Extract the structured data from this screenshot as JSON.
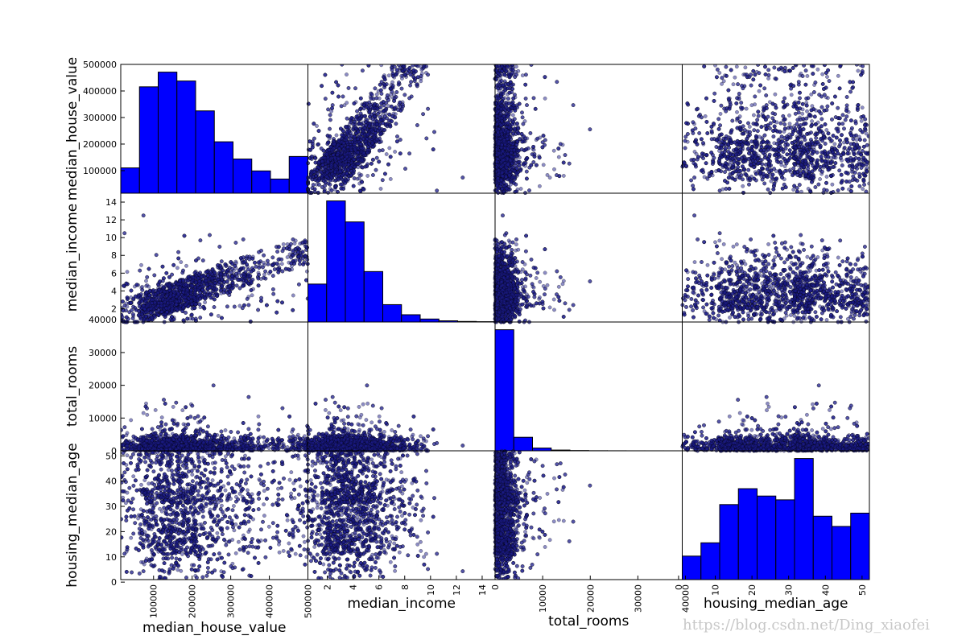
{
  "watermark": "https://blog.csdn.net/Ding_xiaofei",
  "chart_data": {
    "type": "scatter_matrix",
    "variables": [
      "median_house_value",
      "median_income",
      "total_rooms",
      "housing_median_age"
    ],
    "ranges": {
      "median_house_value": [
        14999,
        500001
      ],
      "median_income": [
        0.4999,
        15.0001
      ],
      "total_rooms": [
        2,
        39320
      ],
      "housing_median_age": [
        1,
        52
      ]
    },
    "ticks": {
      "median_house_value": [
        100000,
        200000,
        300000,
        400000,
        500000
      ],
      "median_income": [
        2,
        4,
        6,
        8,
        10,
        12,
        14
      ],
      "total_rooms": [
        0,
        10000,
        20000,
        30000,
        40000
      ],
      "housing_median_age": [
        0,
        10,
        20,
        30,
        40,
        50
      ]
    },
    "histograms": {
      "median_house_value": [
        1000,
        4200,
        4780,
        4430,
        3250,
        2030,
        1350,
        880,
        560,
        1450
      ],
      "median_income": [
        4700,
        15000,
        12400,
        6250,
        2150,
        900,
        370,
        150,
        70,
        40
      ],
      "total_rooms": [
        17900,
        2000,
        410,
        110,
        40,
        15,
        8,
        4,
        2,
        1
      ],
      "housing_median_age": [
        990,
        1550,
        3160,
        3830,
        3520,
        3360,
        5100,
        2670,
        2240,
        2800
      ]
    },
    "scatter": {
      "point_color": "#1c1c8c",
      "point_alpha": 0.5,
      "marker": "circle"
    },
    "histogram_color": "#0000ff",
    "grid": false,
    "legend": "none"
  }
}
